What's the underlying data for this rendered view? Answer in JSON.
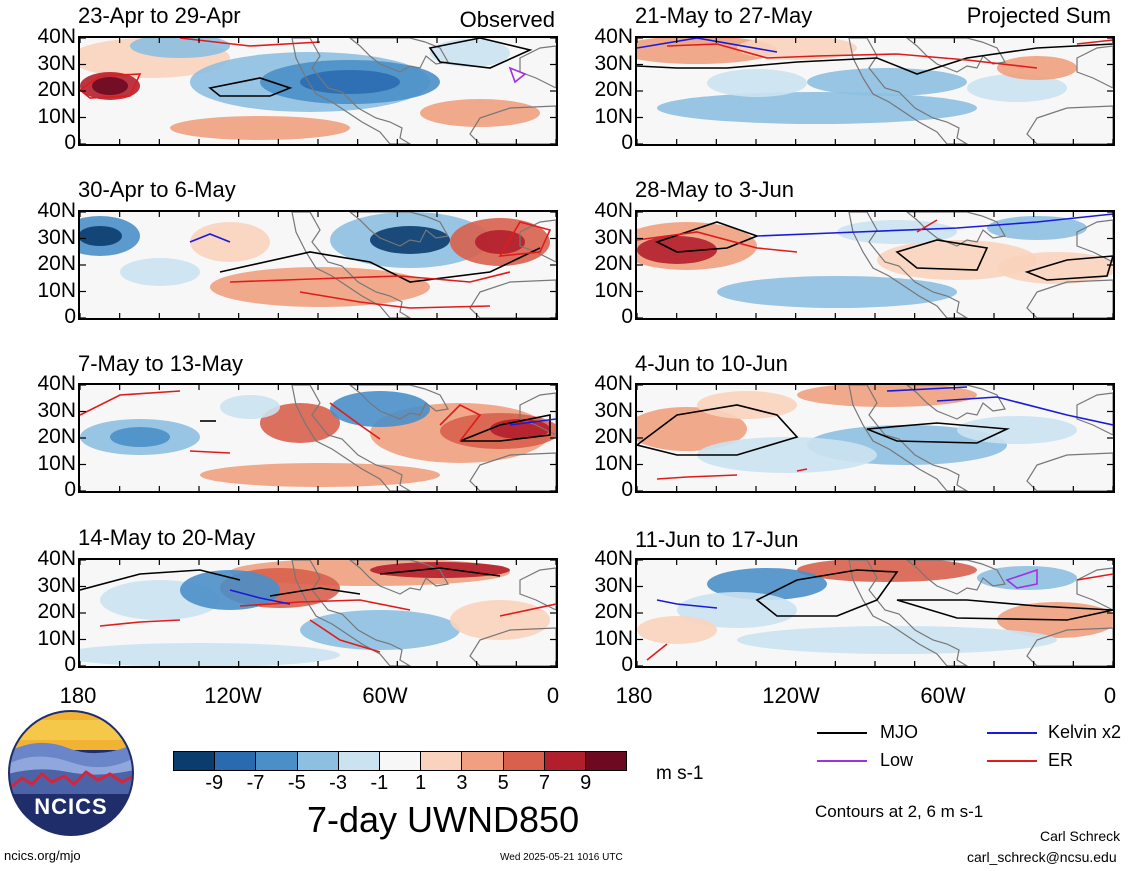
{
  "header": {
    "observed_label": "Observed",
    "projected_label": "Projected Sum"
  },
  "panels": [
    {
      "title": "23-Apr to 29-Apr"
    },
    {
      "title": "30-Apr to 6-May"
    },
    {
      "title": "7-May to 13-May"
    },
    {
      "title": "14-May to 20-May"
    },
    {
      "title": "21-May to 27-May"
    },
    {
      "title": "28-May to 3-Jun"
    },
    {
      "title": "4-Jun to 10-Jun"
    },
    {
      "title": "11-Jun to 17-Jun"
    }
  ],
  "lat_labels": [
    "40N",
    "30N",
    "20N",
    "10N",
    "0"
  ],
  "lon_labels": [
    "180",
    "120W",
    "60W",
    "0"
  ],
  "colorbar": {
    "ticks": [
      "-9",
      "-7",
      "-5",
      "-3",
      "-1",
      "1",
      "3",
      "5",
      "7",
      "9"
    ],
    "colors": [
      "#0b3c6e",
      "#2a6bb0",
      "#4a8fc8",
      "#8cbfe0",
      "#cbe2f1",
      "#f7f7f7",
      "#f9d3bd",
      "#f0a080",
      "#d8604c",
      "#b21f2c",
      "#6d0a22"
    ],
    "units": "m s-1",
    "title": "7-day UWND850"
  },
  "legend": {
    "items": [
      {
        "label": "MJO",
        "color": "#000000"
      },
      {
        "label": "Kelvin x2",
        "color": "#1a1adb"
      },
      {
        "label": "Low",
        "color": "#a030e0"
      },
      {
        "label": "ER",
        "color": "#e01b1b"
      }
    ],
    "contours_note": "Contours at 2, 6 m s-1"
  },
  "footer": {
    "url": "ncics.org/mjo",
    "timestamp": "Wed 2025-05-21 1016 UTC",
    "author": "Carl Schreck",
    "email": "carl_schreck@ncsu.edu",
    "logo_text": "NCICS"
  }
}
